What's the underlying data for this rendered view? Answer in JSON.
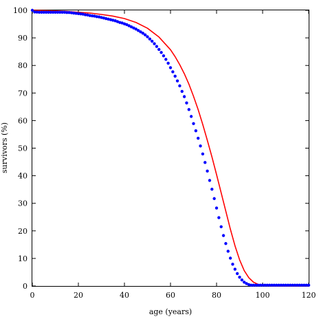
{
  "chart_data": {
    "type": "scatter",
    "title": "",
    "xlabel": "age (years)",
    "ylabel": "survivors (%)",
    "xlim": [
      0,
      120
    ],
    "ylim": [
      0,
      100
    ],
    "x_ticks": [
      0,
      20,
      40,
      60,
      80,
      100,
      120
    ],
    "y_ticks": [
      0,
      10,
      20,
      30,
      40,
      50,
      60,
      70,
      80,
      90,
      100
    ],
    "grid": false,
    "legend": "none",
    "series": [
      {
        "type": "scatter",
        "color": "#0000ff",
        "x": [
          0,
          1,
          2,
          3,
          4,
          5,
          6,
          7,
          8,
          9,
          10,
          11,
          12,
          13,
          14,
          15,
          16,
          17,
          18,
          19,
          20,
          21,
          22,
          23,
          24,
          25,
          26,
          27,
          28,
          29,
          30,
          31,
          32,
          33,
          34,
          35,
          36,
          37,
          38,
          39,
          40,
          41,
          42,
          43,
          44,
          45,
          46,
          47,
          48,
          49,
          50,
          51,
          52,
          53,
          54,
          55,
          56,
          57,
          58,
          59,
          60,
          61,
          62,
          63,
          64,
          65,
          66,
          67,
          68,
          69,
          70,
          71,
          72,
          73,
          74,
          75,
          76,
          77,
          78,
          79,
          80,
          81,
          82,
          83,
          84,
          85,
          86,
          87,
          88,
          89,
          90,
          91,
          92,
          93,
          94,
          95,
          96,
          97,
          98,
          99,
          100,
          101,
          102,
          103,
          104,
          105,
          106,
          107,
          108,
          109,
          110,
          111,
          112,
          113,
          114,
          115,
          116,
          117,
          118,
          119,
          120
        ],
        "y": [
          100,
          99.4,
          99.35,
          99.3,
          99.3,
          99.3,
          99.3,
          99.3,
          99.3,
          99.3,
          99.3,
          99.3,
          99.3,
          99.3,
          99.3,
          99.2,
          99.2,
          99.1,
          99.0,
          98.9,
          98.8,
          98.7,
          98.6,
          98.4,
          98.3,
          98.1,
          98.0,
          97.9,
          97.7,
          97.6,
          97.4,
          97.2,
          97.0,
          96.8,
          96.6,
          96.4,
          96.2,
          95.9,
          95.6,
          95.4,
          95.1,
          94.8,
          94.4,
          94.0,
          93.6,
          93.2,
          92.7,
          92.2,
          91.7,
          91.1,
          90.4,
          89.6,
          88.8,
          87.9,
          86.9,
          85.8,
          84.7,
          83.5,
          82.2,
          80.8,
          79.2,
          77.7,
          76.1,
          74.4,
          72.6,
          70.6,
          68.7,
          66.4,
          64.0,
          61.5,
          58.9,
          56.3,
          53.6,
          50.8,
          47.9,
          44.8,
          41.7,
          38.3,
          35.1,
          31.7,
          28.3,
          24.8,
          21.5,
          18.3,
          15.4,
          12.6,
          10.1,
          7.9,
          6.1,
          4.5,
          3.2,
          2.2,
          1.4,
          0.9,
          0.5,
          0.3,
          0.3,
          0.3,
          0.3,
          0.3,
          0.3,
          0.3,
          0.3,
          0.3,
          0.3,
          0.3,
          0.3,
          0.3,
          0.3,
          0.3,
          0.3,
          0.3,
          0.3,
          0.3,
          0.3,
          0.3,
          0.3,
          0.3,
          0.3,
          0.3,
          0.3
        ]
      },
      {
        "type": "line",
        "color": "#ff0000",
        "x": [
          0,
          5,
          10,
          15,
          20,
          25,
          30,
          35,
          40,
          45,
          50,
          55,
          60,
          62,
          64,
          66,
          68,
          70,
          72,
          74,
          76,
          78,
          80,
          82,
          84,
          86,
          88,
          90,
          92,
          94,
          96,
          98,
          100,
          102,
          104,
          106,
          110,
          115,
          120
        ],
        "y": [
          100,
          99.9,
          99.8,
          99.6,
          99.3,
          99.0,
          98.5,
          97.9,
          97.0,
          95.6,
          93.5,
          90.3,
          85.7,
          83.2,
          80.3,
          77.0,
          73.2,
          68.8,
          64.0,
          58.6,
          52.8,
          46.8,
          40.4,
          33.8,
          27.2,
          20.6,
          14.6,
          9.5,
          5.6,
          3.0,
          1.4,
          0.6,
          0.2,
          0.1,
          0.0,
          0.0,
          0.0,
          0.0,
          0.0
        ]
      }
    ]
  }
}
